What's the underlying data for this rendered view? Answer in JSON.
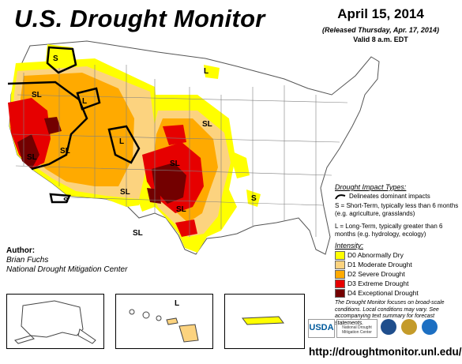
{
  "header": {
    "title": "U.S. Drought Monitor",
    "date": "April 15, 2014",
    "released": "(Released Thursday, Apr. 17, 2014)",
    "valid": "Valid 8 a.m. EDT"
  },
  "author": {
    "heading": "Author:",
    "name": "Brian Fuchs",
    "org": "National Drought Mitigation Center"
  },
  "impact": {
    "heading": "Drought Impact Types:",
    "delineates": "Delineates dominant impacts",
    "short_term": "S = Short-Term, typically less than 6 months (e.g. agriculture, grasslands)",
    "long_term": "L = Long-Term, typically greater than 6 months (e.g. hydrology, ecology)"
  },
  "intensity": {
    "heading": "Intensity:",
    "levels": [
      {
        "label": "D0 Abnormally Dry",
        "color": "#ffff00"
      },
      {
        "label": "D1 Moderate Drought",
        "color": "#fcd37f"
      },
      {
        "label": "D2 Severe Drought",
        "color": "#ffaa00"
      },
      {
        "label": "D3 Extreme Drought",
        "color": "#e60000"
      },
      {
        "label": "D4 Exceptional Drought",
        "color": "#730000"
      }
    ]
  },
  "note": "The Drought Monitor focuses on broad-scale conditions. Local conditions may vary. See accompanying text summary for forecast statements.",
  "url": "http://droughtmonitor.unl.edu/",
  "logos": {
    "usda": "USDA",
    "ndmc": "National Drought Mitigation Center"
  },
  "map_labels": {
    "s": "S",
    "l": "L",
    "sl": "SL"
  },
  "colors": {
    "water": "#9ecae1",
    "land": "#ffffff",
    "boundary": "#808080",
    "impact_line": "#000000"
  }
}
